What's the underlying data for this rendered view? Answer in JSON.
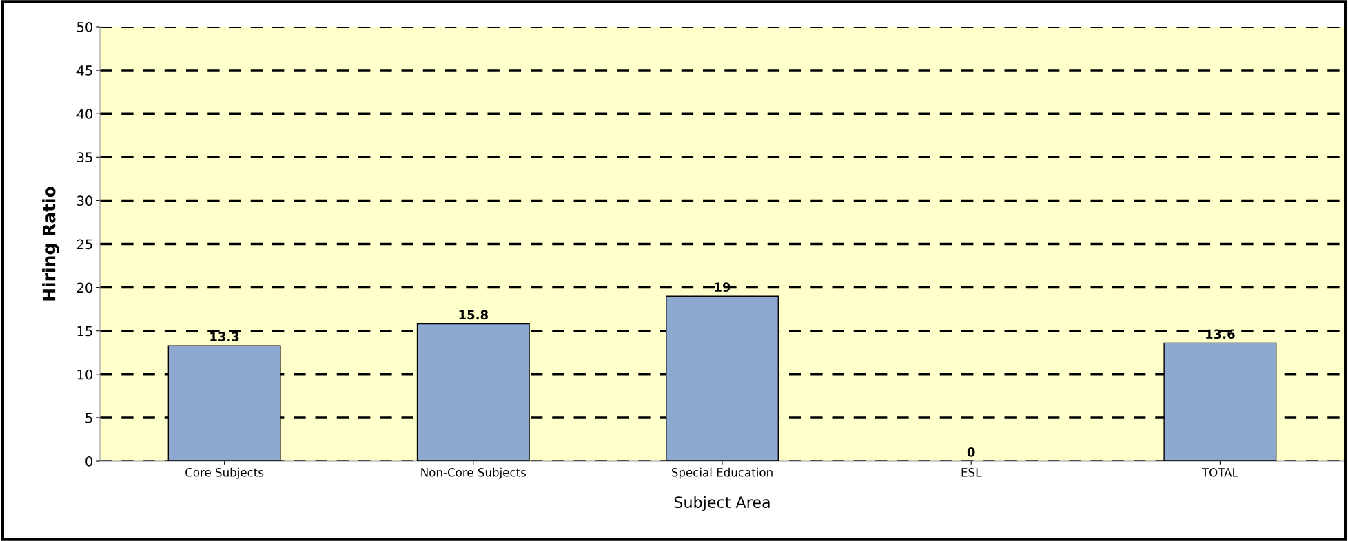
{
  "chart_data": {
    "type": "bar",
    "xlabel": "Subject Area",
    "ylabel": "Hiring Ratio",
    "categories": [
      "Core Subjects",
      "Non-Core Subjects",
      "Special Education",
      "ESL",
      "TOTAL"
    ],
    "values": [
      13.3,
      15.8,
      19,
      0,
      13.6
    ],
    "color": "#8ea9d0",
    "ylim": [
      0,
      50
    ],
    "yticks": [
      0,
      5,
      10,
      15,
      20,
      25,
      30,
      35,
      40,
      45,
      50
    ],
    "grid": "y",
    "data_labels": true
  }
}
